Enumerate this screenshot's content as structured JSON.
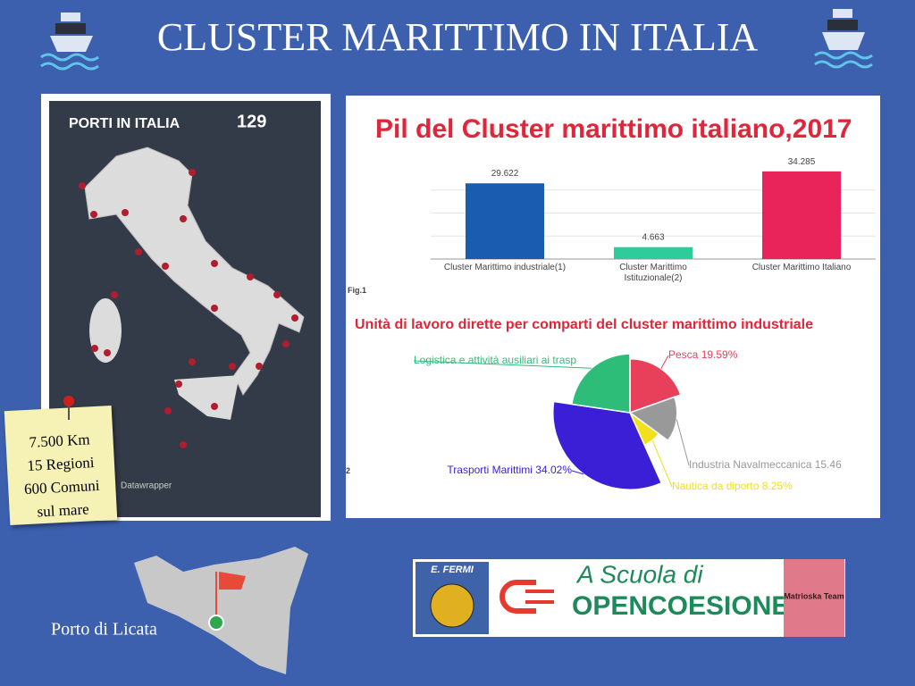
{
  "title": "CLUSTER MARITTIMO IN ITALIA",
  "map": {
    "title": "PORTI IN ITALIA",
    "count": "129",
    "credit": "Datawrapper"
  },
  "note": {
    "lines": [
      "7.500 Km",
      "15 Regioni",
      "600 Comuni",
      "sul mare"
    ]
  },
  "chart_data": [
    {
      "type": "bar",
      "title": "Pil del Cluster marittimo italiano,2017",
      "categories": [
        "Cluster Marittimo industriale(1)",
        "Cluster Marittimo\nIstituzionale(2)",
        "Cluster Marittimo Italiano"
      ],
      "values": [
        29.622,
        4.663,
        34.285
      ],
      "colors": [
        "#1a5cb0",
        "#2ecc9a",
        "#e8245a"
      ],
      "ylim": [
        0,
        36
      ],
      "caption": "Fig.1"
    },
    {
      "type": "pie",
      "title": "Unità di lavoro dirette per comparti del cluster marittimo industriale",
      "categories": [
        "Pesca",
        "Industria Navalmeccanica",
        "Nautica da diporto",
        "Trasporti Marittimi",
        "Logistica e attività ausiliari ai trasp"
      ],
      "values": [
        19.59,
        15.46,
        8.25,
        34.02,
        22.68
      ],
      "value_labels": [
        "19.59%",
        "15.46",
        "8.25%",
        "34.02%",
        null
      ],
      "colors": [
        "#e8405a",
        "#999999",
        "#f2e01a",
        "#3a1fd6",
        "#2ebd78"
      ],
      "caption": "2"
    }
  ],
  "location": "Porto di Licata",
  "logos": {
    "school": "E. FERMI",
    "program_1": "A Scuola di",
    "program_2": "OPENCOESIONE",
    "team": "Matrioska Team"
  }
}
